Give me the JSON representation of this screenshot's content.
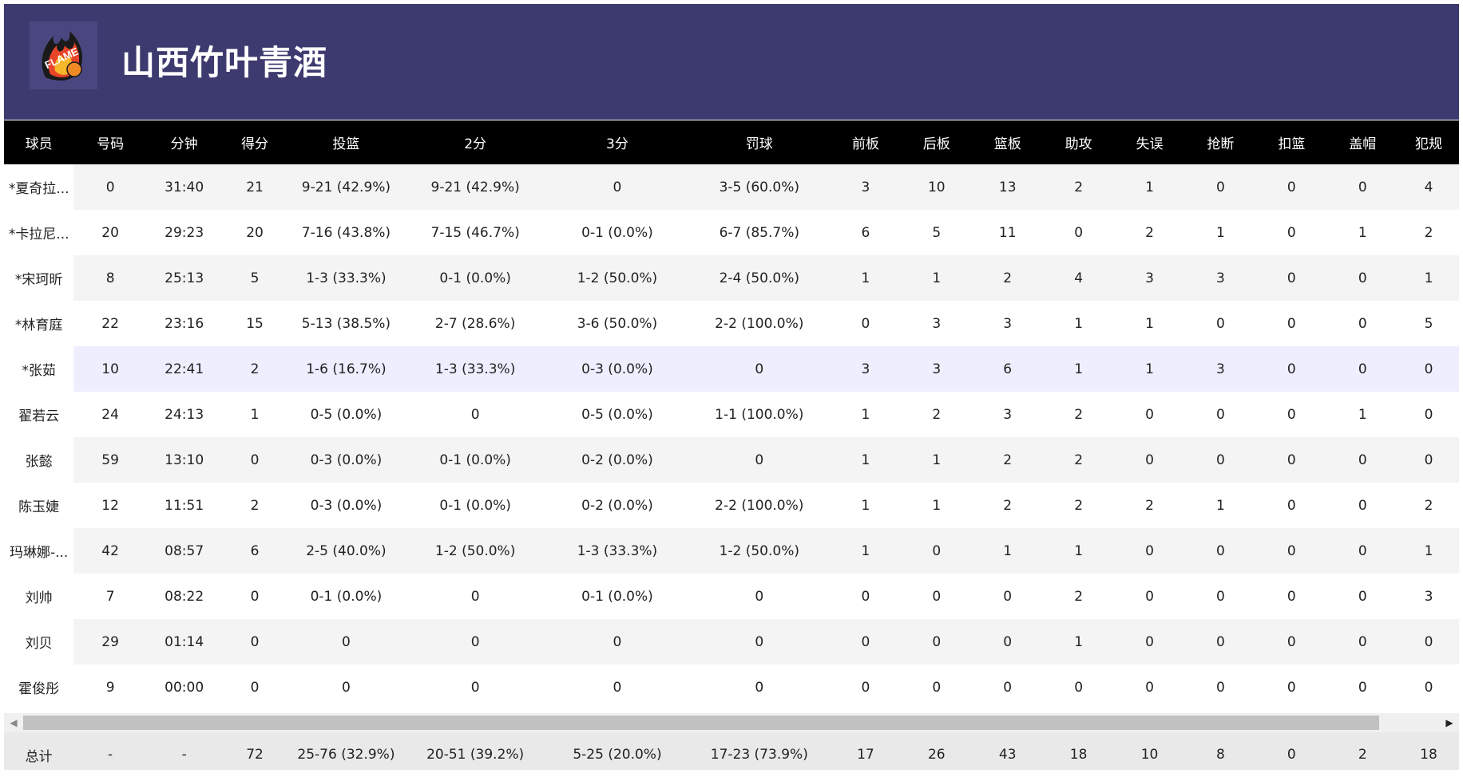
{
  "team": {
    "name": "山西竹叶青酒",
    "logo_text": "FLAME"
  },
  "columns": [
    "球员",
    "号码",
    "分钟",
    "得分",
    "投篮",
    "2分",
    "3分",
    "罚球",
    "前板",
    "后板",
    "篮板",
    "助攻",
    "失误",
    "抢断",
    "扣篮",
    "盖帽",
    "犯规"
  ],
  "rows": [
    [
      "*夏奇拉...",
      "0",
      "31:40",
      "21",
      "9-21 (42.9%)",
      "9-21 (42.9%)",
      "0",
      "3-5 (60.0%)",
      "3",
      "10",
      "13",
      "2",
      "1",
      "0",
      "0",
      "0",
      "4"
    ],
    [
      "*卡拉尼...",
      "20",
      "29:23",
      "20",
      "7-16 (43.8%)",
      "7-15 (46.7%)",
      "0-1 (0.0%)",
      "6-7 (85.7%)",
      "6",
      "5",
      "11",
      "0",
      "2",
      "1",
      "0",
      "1",
      "2"
    ],
    [
      "*宋珂昕",
      "8",
      "25:13",
      "5",
      "1-3 (33.3%)",
      "0-1 (0.0%)",
      "1-2 (50.0%)",
      "2-4 (50.0%)",
      "1",
      "1",
      "2",
      "4",
      "3",
      "3",
      "0",
      "0",
      "1"
    ],
    [
      "*林育庭",
      "22",
      "23:16",
      "15",
      "5-13 (38.5%)",
      "2-7 (28.6%)",
      "3-6 (50.0%)",
      "2-2 (100.0%)",
      "0",
      "3",
      "3",
      "1",
      "1",
      "0",
      "0",
      "0",
      "5"
    ],
    [
      "*张茹",
      "10",
      "22:41",
      "2",
      "1-6 (16.7%)",
      "1-3 (33.3%)",
      "0-3 (0.0%)",
      "0",
      "3",
      "3",
      "6",
      "1",
      "1",
      "3",
      "0",
      "0",
      "0"
    ],
    [
      "翟若云",
      "24",
      "24:13",
      "1",
      "0-5 (0.0%)",
      "0",
      "0-5 (0.0%)",
      "1-1 (100.0%)",
      "1",
      "2",
      "3",
      "2",
      "0",
      "0",
      "0",
      "1",
      "0"
    ],
    [
      "张懿",
      "59",
      "13:10",
      "0",
      "0-3 (0.0%)",
      "0-1 (0.0%)",
      "0-2 (0.0%)",
      "0",
      "1",
      "1",
      "2",
      "2",
      "0",
      "0",
      "0",
      "0",
      "0"
    ],
    [
      "陈玉婕",
      "12",
      "11:51",
      "2",
      "0-3 (0.0%)",
      "0-1 (0.0%)",
      "0-2 (0.0%)",
      "2-2 (100.0%)",
      "1",
      "1",
      "2",
      "2",
      "2",
      "1",
      "0",
      "0",
      "2"
    ],
    [
      "玛琳娜-...",
      "42",
      "08:57",
      "6",
      "2-5 (40.0%)",
      "1-2 (50.0%)",
      "1-3 (33.3%)",
      "1-2 (50.0%)",
      "1",
      "0",
      "1",
      "1",
      "0",
      "0",
      "0",
      "0",
      "1"
    ],
    [
      "刘帅",
      "7",
      "08:22",
      "0",
      "0-1 (0.0%)",
      "0",
      "0-1 (0.0%)",
      "0",
      "0",
      "0",
      "0",
      "2",
      "0",
      "0",
      "0",
      "0",
      "3"
    ],
    [
      "刘贝",
      "29",
      "01:14",
      "0",
      "0",
      "0",
      "0",
      "0",
      "0",
      "0",
      "0",
      "1",
      "0",
      "0",
      "0",
      "0",
      "0"
    ],
    [
      "霍俊彤",
      "9",
      "00:00",
      "0",
      "0",
      "0",
      "0",
      "0",
      "0",
      "0",
      "0",
      "0",
      "0",
      "0",
      "0",
      "0",
      "0"
    ]
  ],
  "highlight_row": 4,
  "totals": [
    "总计",
    "-",
    "-",
    "72",
    "25-76 (32.9%)",
    "20-51 (39.2%)",
    "5-25 (20.0%)",
    "17-23 (73.9%)",
    "17",
    "26",
    "43",
    "18",
    "10",
    "8",
    "0",
    "2",
    "18"
  ],
  "scrollbar": {
    "left_arrow": "◀",
    "right_arrow": "▶"
  },
  "colors": {
    "header_bg": "#3c3a6e",
    "table_head_bg": "#000000",
    "highlight": "#eeeeff"
  }
}
